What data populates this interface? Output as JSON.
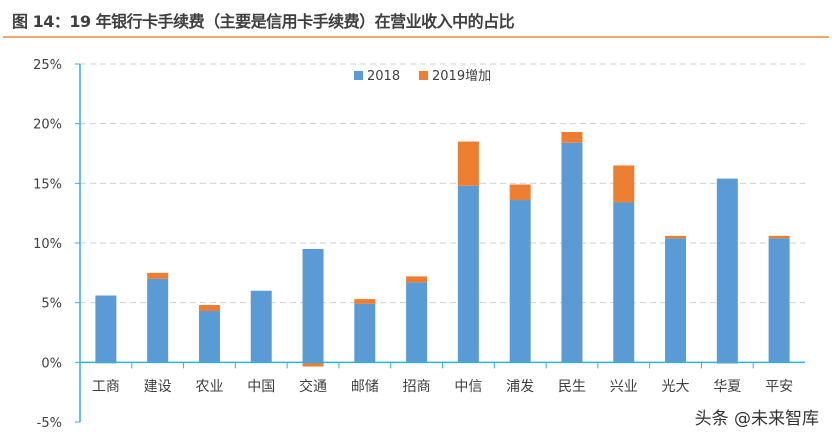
{
  "title": "图 14：19 年银行卡手续费（主要是信用卡手续费）在营业收入中的占比",
  "watermark": "头条 @未来智库",
  "chart_data": {
    "type": "bar",
    "stacked": true,
    "categories": [
      "工商",
      "建设",
      "农业",
      "中国",
      "交通",
      "邮储",
      "招商",
      "中信",
      "浦发",
      "民生",
      "兴业",
      "光大",
      "华夏",
      "平安"
    ],
    "series": [
      {
        "name": "2018",
        "color": "#5b9bd5",
        "values": [
          5.6,
          7.0,
          4.3,
          6.0,
          9.5,
          4.9,
          6.7,
          14.8,
          13.6,
          18.4,
          13.4,
          10.4,
          15.4,
          10.4
        ]
      },
      {
        "name": "2019增加",
        "color": "#ed7d31",
        "values": [
          -0.05,
          0.5,
          0.5,
          0.0,
          -0.35,
          0.4,
          0.5,
          3.7,
          1.3,
          0.9,
          3.1,
          0.2,
          -0.1,
          0.2
        ]
      }
    ],
    "ylim": [
      -5,
      25
    ],
    "yticks": [
      "-5%",
      "0%",
      "5%",
      "10%",
      "15%",
      "20%",
      "25%"
    ],
    "ytick_values": [
      -5,
      0,
      5,
      10,
      15,
      20,
      25
    ],
    "grid": true,
    "legend": "top-center"
  }
}
